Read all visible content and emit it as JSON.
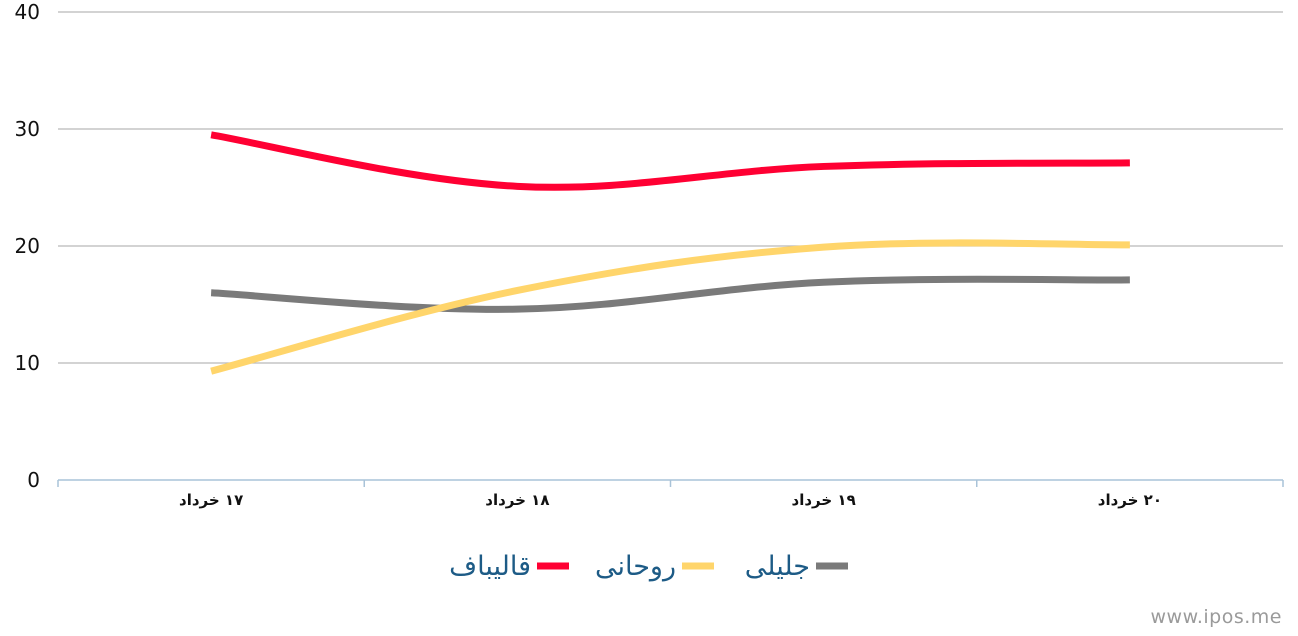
{
  "chart_data": {
    "type": "line",
    "categories": [
      "۱۷ خرداد",
      "۱۸ خرداد",
      "۱۹ خرداد",
      "۲۰ خرداد"
    ],
    "series": [
      {
        "name": "قالیباف",
        "color": "#ff0033",
        "values": [
          29.5,
          25.1,
          26.8,
          27.1
        ]
      },
      {
        "name": "روحانی",
        "color": "#ffd56b",
        "values": [
          9.3,
          16.2,
          19.9,
          20.1
        ]
      },
      {
        "name": "جلیلی",
        "color": "#7a7a7a",
        "values": [
          16.0,
          14.6,
          16.9,
          17.1
        ]
      }
    ],
    "ylim": [
      0,
      40
    ],
    "yticks": [
      0,
      10,
      20,
      30,
      40
    ],
    "grid": true,
    "legend_position": "bottom"
  },
  "watermark": "www.ipos.me"
}
